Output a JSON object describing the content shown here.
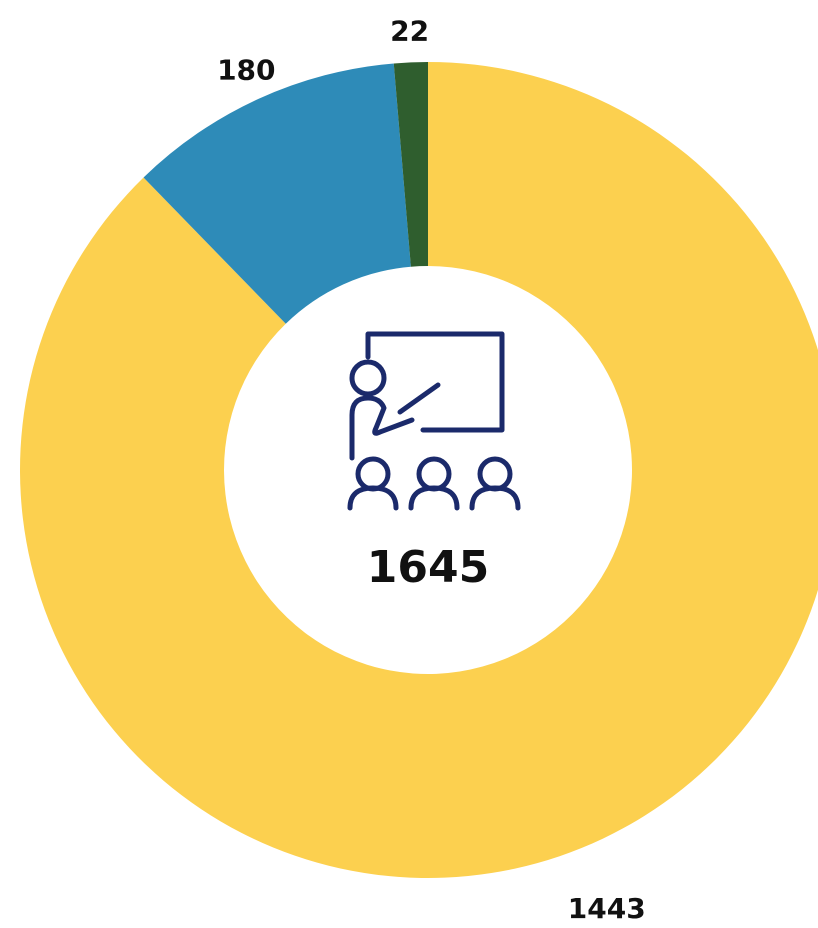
{
  "chart_data": {
    "type": "donut",
    "values": [
      1443,
      180,
      22
    ],
    "colors": [
      "#fcd04f",
      "#2e8bb8",
      "#2f5e2e"
    ],
    "center_label": 1645
  }
}
